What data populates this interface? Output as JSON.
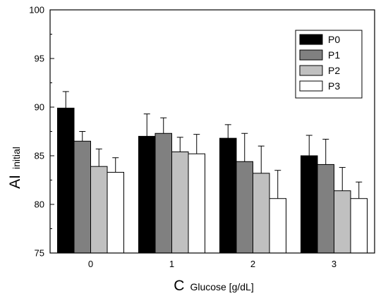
{
  "chart_data": {
    "type": "bar",
    "title": "",
    "xlabel": {
      "main": "C",
      "sub": "Glucose [g/dL]"
    },
    "ylabel": {
      "main": "AI",
      "sub": "initial"
    },
    "categories": [
      "0",
      "1",
      "2",
      "3"
    ],
    "ylim": [
      75,
      100
    ],
    "yticks": [
      "75",
      "80",
      "85",
      "90",
      "95",
      "100"
    ],
    "grid": false,
    "legend_position": "top-right",
    "series": [
      {
        "name": "P0",
        "color": "#000000",
        "values": [
          89.9,
          87.0,
          86.8,
          85.0
        ],
        "errors": [
          1.7,
          2.3,
          1.4,
          2.1
        ]
      },
      {
        "name": "P1",
        "color": "#808080",
        "values": [
          86.5,
          87.3,
          84.4,
          84.1
        ],
        "errors": [
          1.0,
          1.6,
          2.9,
          2.6
        ]
      },
      {
        "name": "P2",
        "color": "#c0c0c0",
        "values": [
          83.9,
          85.4,
          83.2,
          81.4
        ],
        "errors": [
          1.8,
          1.5,
          2.8,
          2.4
        ]
      },
      {
        "name": "P3",
        "color": "#ffffff",
        "values": [
          83.3,
          85.2,
          80.6,
          80.6
        ],
        "errors": [
          1.5,
          2.0,
          2.9,
          1.7
        ]
      }
    ]
  }
}
